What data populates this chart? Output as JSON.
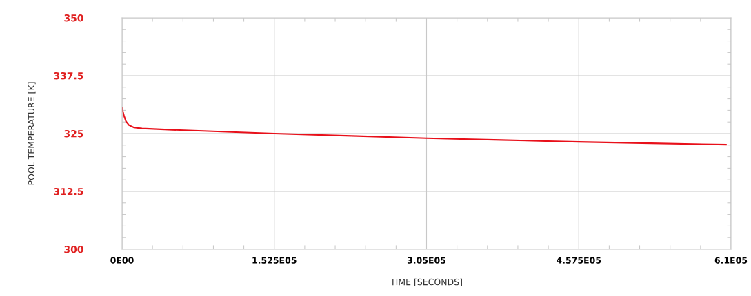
{
  "chart_data": {
    "type": "line",
    "xlabel": "TIME [SECONDS]",
    "ylabel": "POOL TEMPERATURE [K]",
    "series": [
      {
        "color": "#e8101a",
        "x": [
          0,
          2000,
          4000,
          7000,
          12000,
          20000,
          50000,
          100000,
          152500,
          230000,
          305000,
          380000,
          457500,
          530000,
          605000
        ],
        "values": [
          330.5,
          328.8,
          327.6,
          326.8,
          326.3,
          326.1,
          325.8,
          325.4,
          325.0,
          324.5,
          324.0,
          323.6,
          323.2,
          322.9,
          322.6
        ]
      }
    ],
    "xlim": [
      0,
      610000
    ],
    "xticks": [
      {
        "value": 0,
        "label": "0E00"
      },
      {
        "value": 152500,
        "label": "1.525E05"
      },
      {
        "value": 305000,
        "label": "3.05E05"
      },
      {
        "value": 457500,
        "label": "4.575E05"
      },
      {
        "value": 610000,
        "label": "6.1E05"
      }
    ],
    "ylim": [
      300,
      350
    ],
    "yticks": [
      300,
      312.5,
      325,
      337.5,
      350
    ],
    "grid": true,
    "legend": false,
    "marker": "none",
    "line_style": "solid"
  }
}
